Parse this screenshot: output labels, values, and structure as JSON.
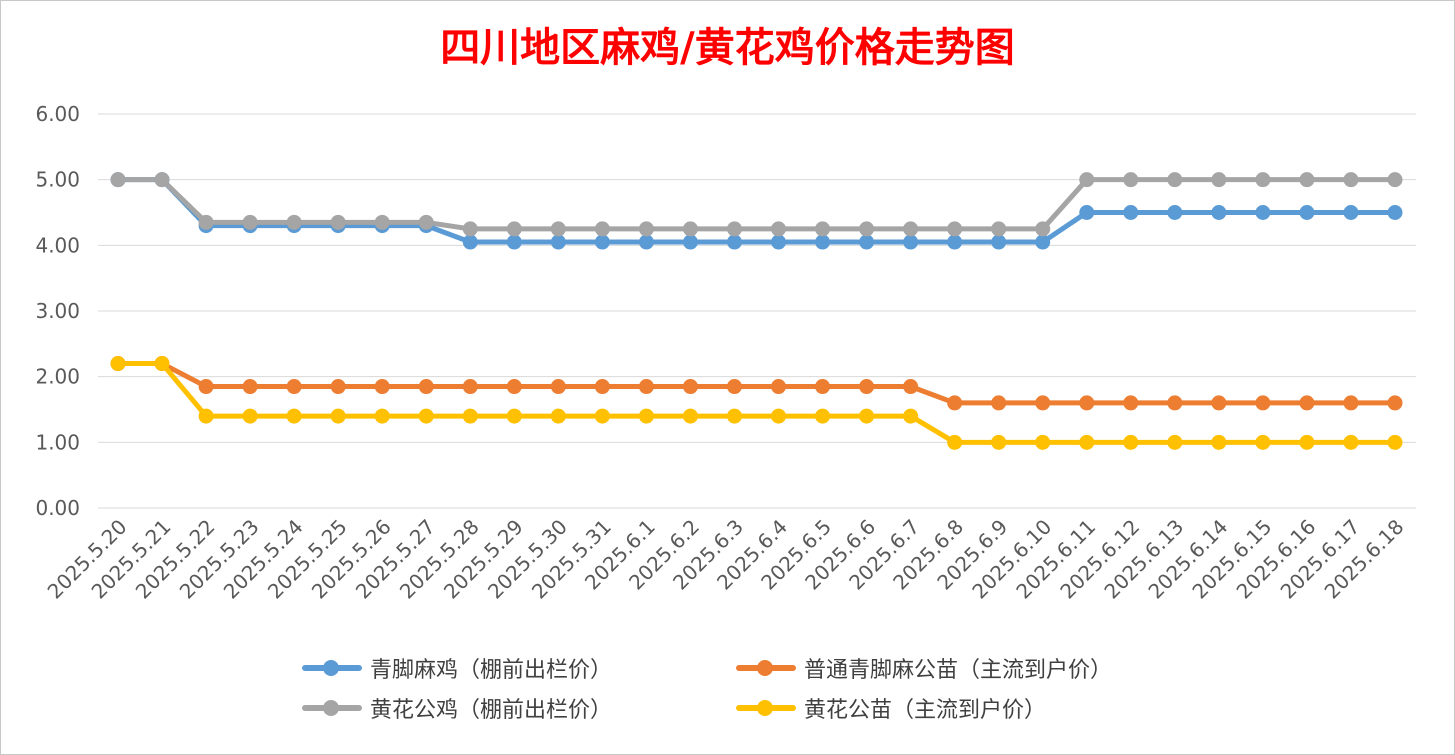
{
  "chart_data": {
    "type": "line",
    "title": "四川地区麻鸡/黄花鸡价格走势图",
    "title_color": "#ff0000",
    "xlabel": "",
    "ylabel": "",
    "ylim": [
      0,
      6
    ],
    "yticks": [
      "0.00",
      "1.00",
      "2.00",
      "3.00",
      "4.00",
      "5.00",
      "6.00"
    ],
    "grid": true,
    "legend_position": "bottom",
    "categories": [
      "2025.5.20",
      "2025.5.21",
      "2025.5.22",
      "2025.5.23",
      "2025.5.24",
      "2025.5.25",
      "2025.5.26",
      "2025.5.27",
      "2025.5.28",
      "2025.5.29",
      "2025.5.30",
      "2025.5.31",
      "2025.6.1",
      "2025.6.2",
      "2025.6.3",
      "2025.6.4",
      "2025.6.5",
      "2025.6.6",
      "2025.6.7",
      "2025.6.8",
      "2025.6.9",
      "2025.6.10",
      "2025.6.11",
      "2025.6.12",
      "2025.6.13",
      "2025.6.14",
      "2025.6.15",
      "2025.6.16",
      "2025.6.17",
      "2025.6.18"
    ],
    "series": [
      {
        "name": "青脚麻鸡（棚前出栏价）",
        "color": "#5b9bd5",
        "values": [
          5.0,
          5.0,
          4.3,
          4.3,
          4.3,
          4.3,
          4.3,
          4.3,
          4.05,
          4.05,
          4.05,
          4.05,
          4.05,
          4.05,
          4.05,
          4.05,
          4.05,
          4.05,
          4.05,
          4.05,
          4.05,
          4.05,
          4.5,
          4.5,
          4.5,
          4.5,
          4.5,
          4.5,
          4.5,
          4.5
        ]
      },
      {
        "name": "普通青脚麻公苗（主流到户价）",
        "color": "#ed7d31",
        "values": [
          2.2,
          2.2,
          1.85,
          1.85,
          1.85,
          1.85,
          1.85,
          1.85,
          1.85,
          1.85,
          1.85,
          1.85,
          1.85,
          1.85,
          1.85,
          1.85,
          1.85,
          1.85,
          1.85,
          1.6,
          1.6,
          1.6,
          1.6,
          1.6,
          1.6,
          1.6,
          1.6,
          1.6,
          1.6,
          1.6
        ]
      },
      {
        "name": "黄花公鸡（棚前出栏价）",
        "color": "#a5a5a5",
        "values": [
          5.0,
          5.0,
          4.35,
          4.35,
          4.35,
          4.35,
          4.35,
          4.35,
          4.25,
          4.25,
          4.25,
          4.25,
          4.25,
          4.25,
          4.25,
          4.25,
          4.25,
          4.25,
          4.25,
          4.25,
          4.25,
          4.25,
          5.0,
          5.0,
          5.0,
          5.0,
          5.0,
          5.0,
          5.0,
          5.0
        ]
      },
      {
        "name": "黄花公苗（主流到户价）",
        "color": "#ffc000",
        "values": [
          2.2,
          2.2,
          1.4,
          1.4,
          1.4,
          1.4,
          1.4,
          1.4,
          1.4,
          1.4,
          1.4,
          1.4,
          1.4,
          1.4,
          1.4,
          1.4,
          1.4,
          1.4,
          1.4,
          1.0,
          1.0,
          1.0,
          1.0,
          1.0,
          1.0,
          1.0,
          1.0,
          1.0,
          1.0,
          1.0
        ]
      }
    ]
  }
}
